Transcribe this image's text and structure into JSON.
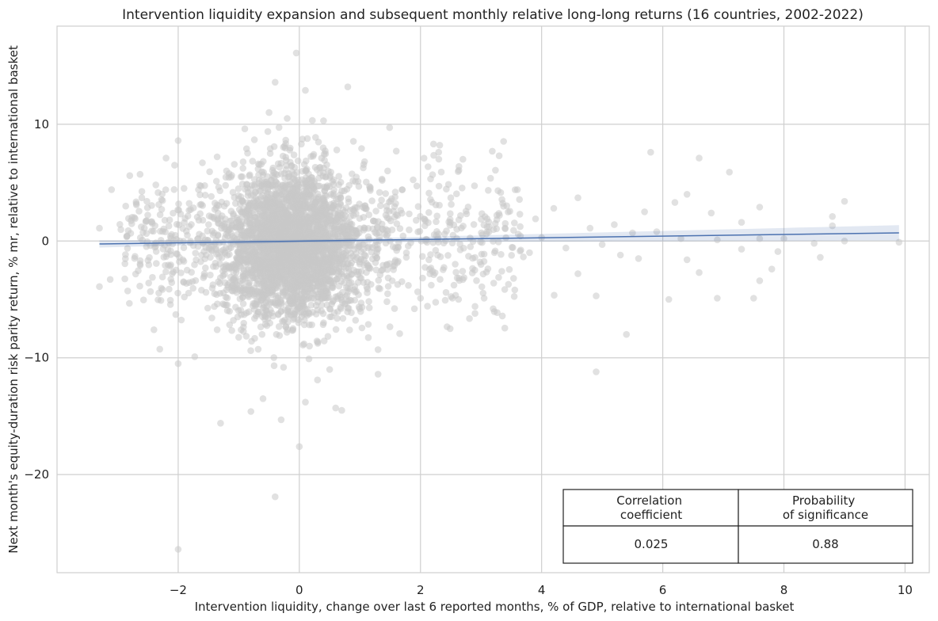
{
  "chart_data": {
    "type": "scatter",
    "title": "Intervention liquidity expansion and subsequent monthly relative long-long returns (16 countries, 2002-2022)",
    "xlabel": "Intervention liquidity, change over last 6 reported months, % of GDP, relative to international basket",
    "ylabel": "Next month's equity-duration risk parity return, % mr, relative to international basket",
    "xlim": [
      -4.0,
      10.4
    ],
    "ylim": [
      -28.4,
      18.4
    ],
    "x_ticks": [
      -2,
      0,
      2,
      4,
      6,
      8,
      10
    ],
    "x_tick_labels": [
      "−2",
      "0",
      "2",
      "4",
      "6",
      "8",
      "10"
    ],
    "y_ticks": [
      -20,
      -10,
      0,
      10
    ],
    "y_tick_labels": [
      "−20",
      "−10",
      "0",
      "10"
    ],
    "grid": true,
    "point_color": "#c8c8c8",
    "regression": {
      "x": [
        -3.3,
        9.9
      ],
      "y": [
        -0.25,
        0.7
      ],
      "color": "#4c72b0",
      "ci_band_color": "#4c72b0"
    },
    "scatter_outliers": [
      [
        -0.05,
        16.1
      ],
      [
        0.1,
        12.9
      ],
      [
        -0.4,
        13.6
      ],
      [
        0.8,
        13.2
      ],
      [
        -2.0,
        8.6
      ],
      [
        -2.2,
        7.1
      ],
      [
        -0.9,
        9.6
      ],
      [
        1.6,
        7.7
      ],
      [
        2.3,
        7.6
      ],
      [
        2.7,
        7.0
      ],
      [
        3.3,
        7.3
      ],
      [
        5.8,
        7.6
      ],
      [
        6.6,
        7.1
      ],
      [
        7.1,
        5.9
      ],
      [
        9.0,
        3.4
      ],
      [
        8.8,
        2.1
      ],
      [
        9.9,
        -0.1
      ],
      [
        8.6,
        -1.4
      ],
      [
        7.9,
        -0.9
      ],
      [
        7.5,
        -4.9
      ],
      [
        7.6,
        -3.4
      ],
      [
        6.9,
        -4.9
      ],
      [
        6.6,
        -2.7
      ],
      [
        6.1,
        -5.0
      ],
      [
        5.4,
        -8.0
      ],
      [
        4.9,
        -4.7
      ],
      [
        4.9,
        -11.2
      ],
      [
        5.6,
        -1.5
      ],
      [
        4.6,
        -2.8
      ],
      [
        4.6,
        3.7
      ],
      [
        5.9,
        0.8
      ],
      [
        6.8,
        2.4
      ],
      [
        7.6,
        2.9
      ],
      [
        6.4,
        4.0
      ],
      [
        3.6,
        4.4
      ],
      [
        3.2,
        -5.8
      ],
      [
        2.9,
        -5.6
      ],
      [
        2.9,
        -6.2
      ],
      [
        1.3,
        -11.4
      ],
      [
        1.3,
        -9.3
      ],
      [
        0.5,
        -11.0
      ],
      [
        0.3,
        -11.9
      ],
      [
        0.6,
        -14.3
      ],
      [
        0.7,
        -14.5
      ],
      [
        0.1,
        -13.8
      ],
      [
        -0.3,
        -15.3
      ],
      [
        -0.6,
        -13.5
      ],
      [
        -0.8,
        -14.6
      ],
      [
        -1.3,
        -15.6
      ],
      [
        -0.4,
        -21.9
      ],
      [
        0.0,
        -17.6
      ],
      [
        -2.0,
        -26.4
      ],
      [
        -2.0,
        -10.5
      ],
      [
        -3.3,
        -3.9
      ],
      [
        -3.3,
        1.1
      ],
      [
        -3.1,
        4.4
      ],
      [
        -2.8,
        5.6
      ],
      [
        -2.6,
        3.7
      ],
      [
        -1.6,
        6.7
      ],
      [
        -0.5,
        11.0
      ],
      [
        -0.2,
        10.5
      ],
      [
        0.4,
        10.3
      ],
      [
        2.0,
        -4.9
      ],
      [
        1.9,
        -5.8
      ],
      [
        -2.4,
        -7.6
      ],
      [
        4.2,
        2.8
      ],
      [
        3.1,
        1.9
      ],
      [
        2.7,
        -3.3
      ],
      [
        5.2,
        1.4
      ],
      [
        4.0,
        0.3
      ],
      [
        5.5,
        0.7
      ],
      [
        6.3,
        0.2
      ],
      [
        6.9,
        0.1
      ],
      [
        7.3,
        -0.7
      ],
      [
        7.6,
        0.2
      ],
      [
        8.0,
        0.2
      ],
      [
        9.0,
        0.0
      ],
      [
        8.5,
        -0.2
      ],
      [
        4.8,
        1.1
      ],
      [
        5.0,
        -0.3
      ],
      [
        5.7,
        2.5
      ],
      [
        6.2,
        3.3
      ],
      [
        7.3,
        1.6
      ],
      [
        8.8,
        1.3
      ],
      [
        3.8,
        -1.0
      ],
      [
        3.4,
        1.5
      ],
      [
        2.5,
        3.7
      ],
      [
        2.2,
        -2.6
      ],
      [
        2.6,
        1.0
      ],
      [
        1.8,
        -3.8
      ],
      [
        2.4,
        0.6
      ],
      [
        3.0,
        -2.0
      ],
      [
        3.9,
        1.9
      ],
      [
        4.4,
        -0.6
      ],
      [
        5.3,
        -1.2
      ],
      [
        6.4,
        -1.6
      ],
      [
        7.8,
        -2.4
      ]
    ]
  }
}
